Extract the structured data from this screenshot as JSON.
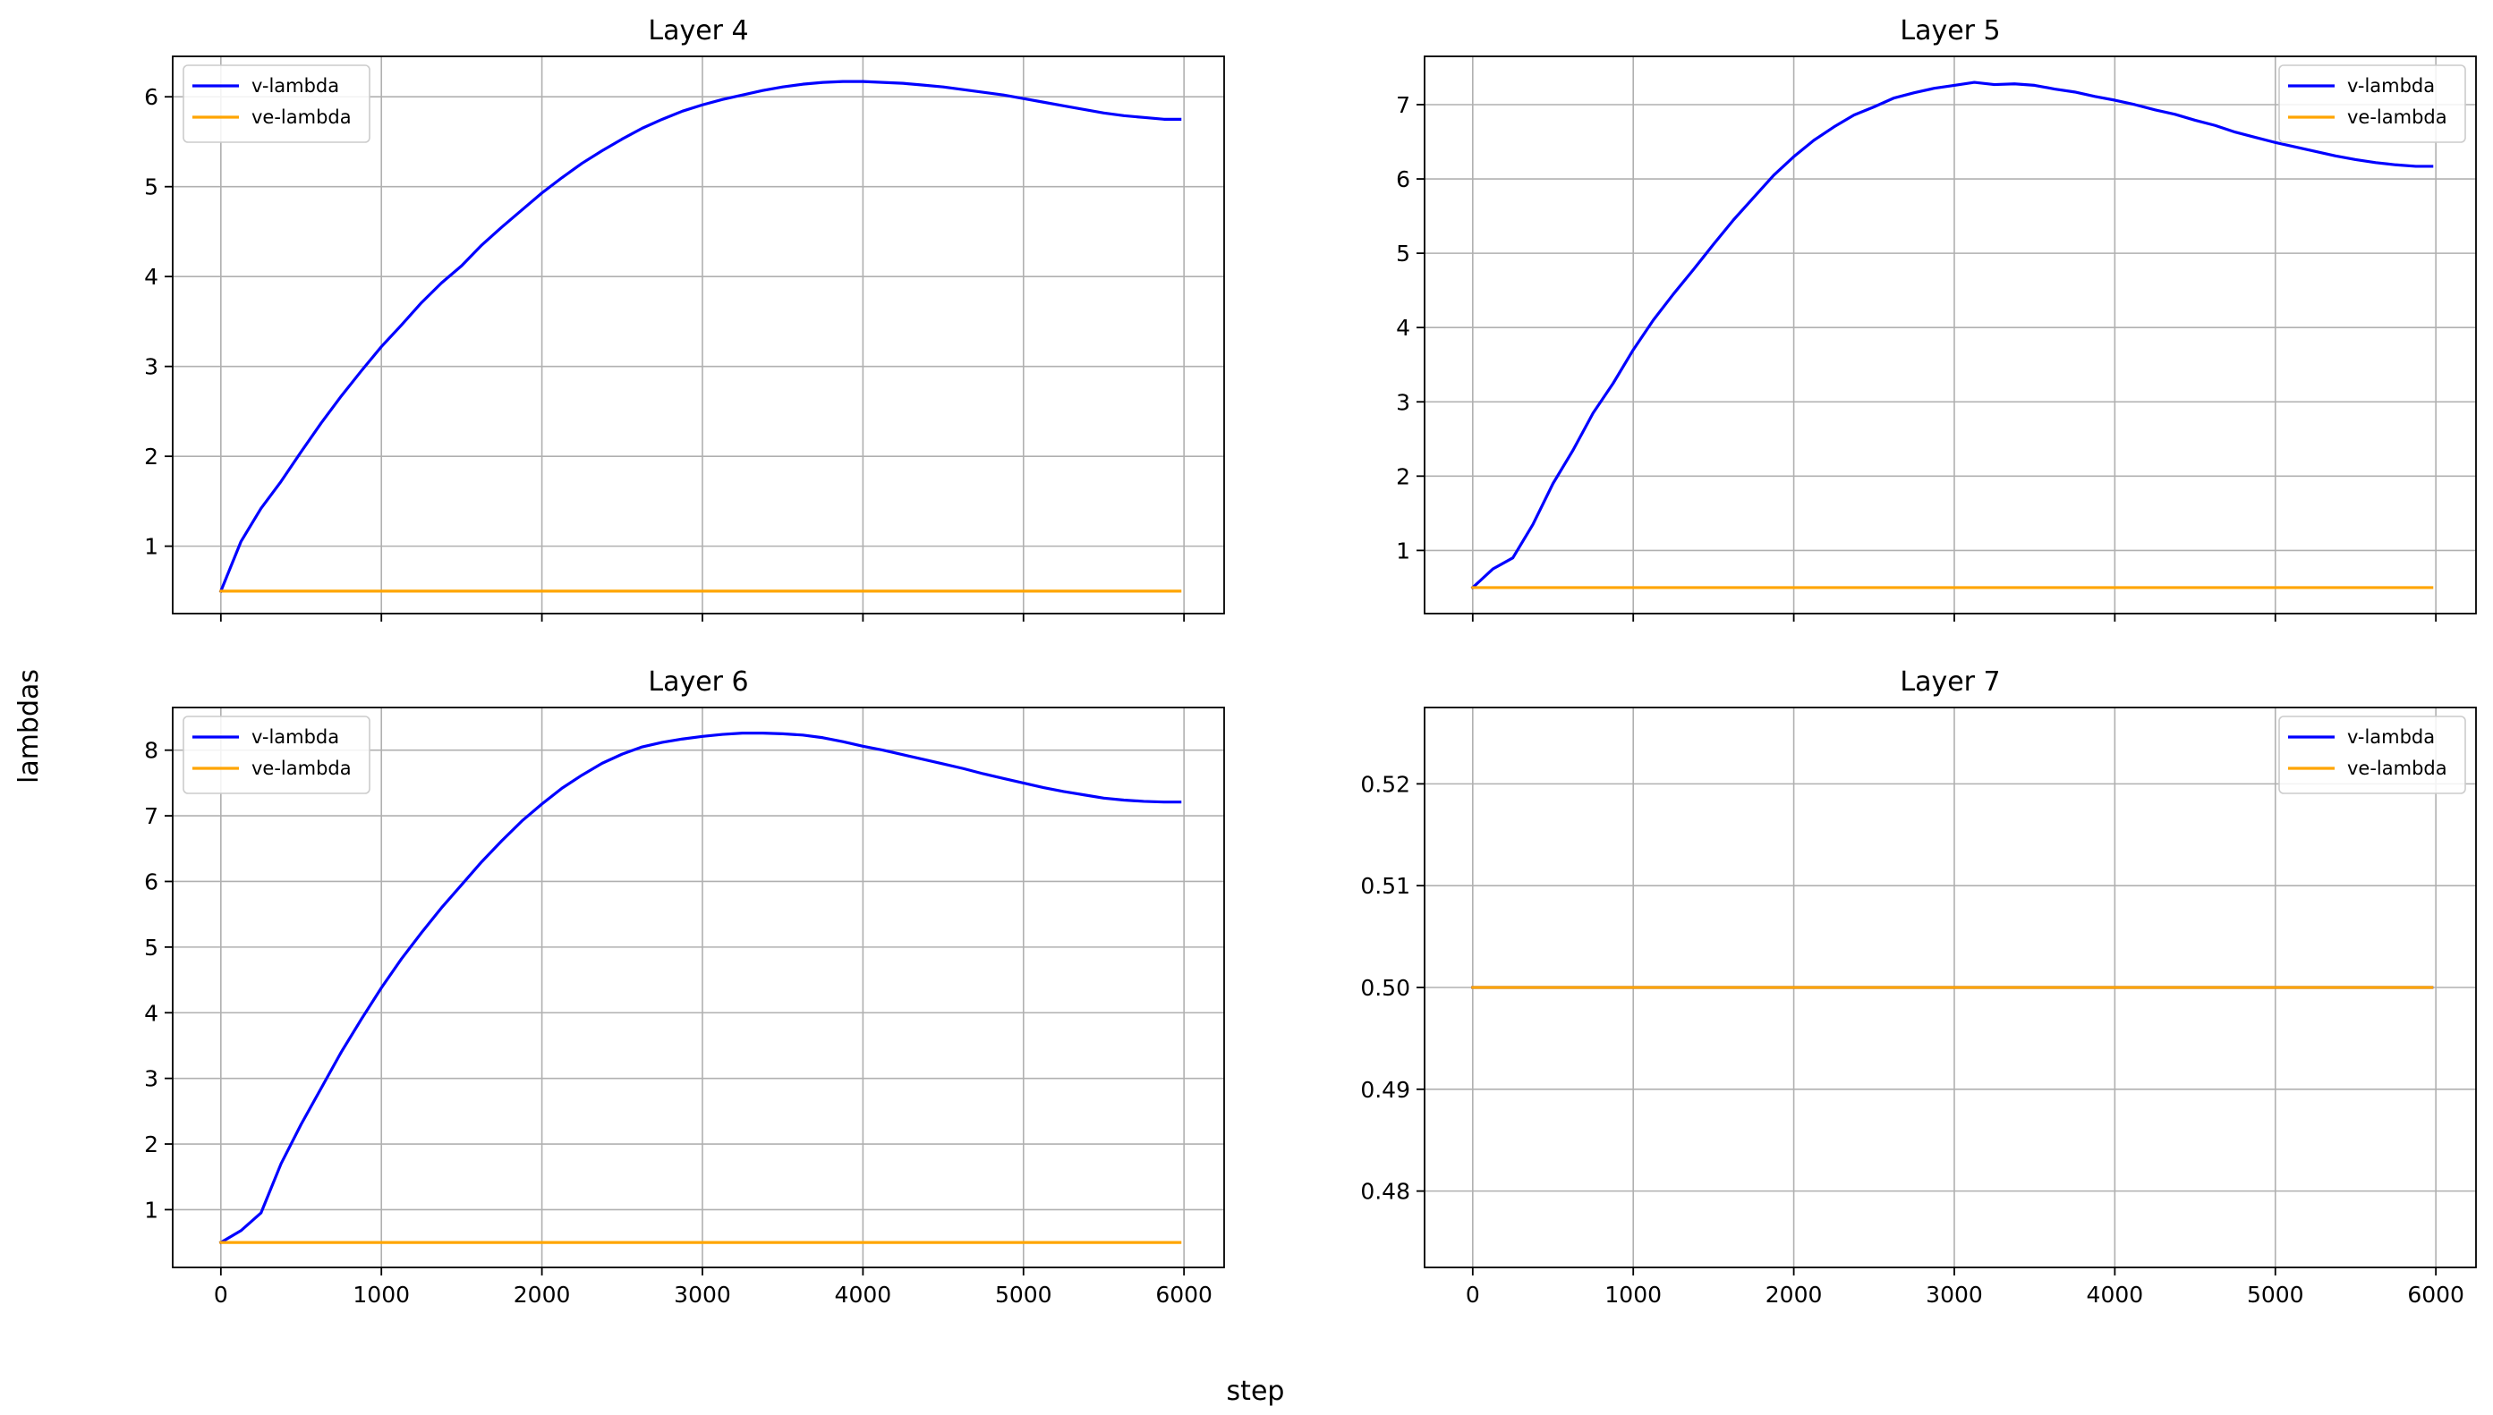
{
  "figure": {
    "xlabel": "step",
    "ylabel": "lambdas"
  },
  "colors": {
    "v_lambda": "#0000ff",
    "ve_lambda": "#ffa500",
    "grid": "#b0b0b0",
    "axes": "#000000"
  },
  "chart_data": [
    {
      "type": "line",
      "title": "Layer 4",
      "xlim": [
        -300,
        6250
      ],
      "ylim": [
        0.25,
        6.45
      ],
      "xticks": [
        0,
        1000,
        2000,
        3000,
        4000,
        5000,
        6000
      ],
      "xtick_labels_visible": false,
      "yticks": [
        1,
        2,
        3,
        4,
        5,
        6
      ],
      "ytick_labels": [
        "1",
        "2",
        "3",
        "4",
        "5",
        "6"
      ],
      "grid": true,
      "legend_position": "upper-left",
      "series": [
        {
          "name": "v-lambda",
          "color": "#0000ff",
          "x": [
            0,
            125,
            250,
            375,
            500,
            625,
            750,
            875,
            1000,
            1125,
            1250,
            1375,
            1500,
            1625,
            1750,
            1875,
            2000,
            2125,
            2250,
            2375,
            2500,
            2625,
            2750,
            2875,
            3000,
            3125,
            3250,
            3375,
            3500,
            3625,
            3750,
            3875,
            4000,
            4125,
            4250,
            4375,
            4500,
            4625,
            4750,
            4875,
            5000,
            5125,
            5250,
            5375,
            5500,
            5625,
            5750,
            5875,
            5975
          ],
          "y": [
            0.5,
            1.05,
            1.42,
            1.72,
            2.05,
            2.37,
            2.67,
            2.95,
            3.22,
            3.46,
            3.71,
            3.93,
            4.12,
            4.35,
            4.55,
            4.74,
            4.93,
            5.1,
            5.26,
            5.4,
            5.53,
            5.65,
            5.75,
            5.84,
            5.91,
            5.97,
            6.02,
            6.07,
            6.11,
            6.14,
            6.16,
            6.17,
            6.17,
            6.16,
            6.15,
            6.13,
            6.11,
            6.08,
            6.05,
            6.02,
            5.98,
            5.94,
            5.9,
            5.86,
            5.82,
            5.79,
            5.77,
            5.75,
            5.75
          ]
        },
        {
          "name": "ve-lambda",
          "color": "#ffa500",
          "x": [
            0,
            5975
          ],
          "y": [
            0.5,
            0.5
          ]
        }
      ]
    },
    {
      "type": "line",
      "title": "Layer 5",
      "xlim": [
        -300,
        6250
      ],
      "ylim": [
        0.15,
        7.65
      ],
      "xticks": [
        0,
        1000,
        2000,
        3000,
        4000,
        5000,
        6000
      ],
      "xtick_labels_visible": false,
      "yticks": [
        1,
        2,
        3,
        4,
        5,
        6,
        7
      ],
      "ytick_labels": [
        "1",
        "2",
        "3",
        "4",
        "5",
        "6",
        "7"
      ],
      "grid": true,
      "legend_position": "upper-right",
      "series": [
        {
          "name": "v-lambda",
          "color": "#0000ff",
          "x": [
            0,
            125,
            250,
            375,
            500,
            625,
            750,
            875,
            1000,
            1125,
            1250,
            1375,
            1500,
            1625,
            1750,
            1875,
            2000,
            2125,
            2250,
            2375,
            2500,
            2625,
            2750,
            2875,
            3000,
            3125,
            3250,
            3375,
            3500,
            3625,
            3750,
            3875,
            4000,
            4125,
            4250,
            4375,
            4500,
            4625,
            4750,
            4875,
            5000,
            5125,
            5250,
            5375,
            5500,
            5625,
            5750,
            5875,
            5975
          ],
          "y": [
            0.5,
            0.75,
            0.9,
            1.35,
            1.9,
            2.35,
            2.85,
            3.25,
            3.7,
            4.1,
            4.45,
            4.78,
            5.12,
            5.45,
            5.75,
            6.05,
            6.3,
            6.52,
            6.7,
            6.86,
            6.97,
            7.09,
            7.16,
            7.22,
            7.26,
            7.3,
            7.27,
            7.28,
            7.26,
            7.21,
            7.17,
            7.11,
            7.06,
            7.0,
            6.93,
            6.87,
            6.79,
            6.72,
            6.63,
            6.56,
            6.49,
            6.43,
            6.37,
            6.31,
            6.26,
            6.22,
            6.19,
            6.17,
            6.17
          ]
        },
        {
          "name": "ve-lambda",
          "color": "#ffa500",
          "x": [
            0,
            5975
          ],
          "y": [
            0.5,
            0.5
          ]
        }
      ]
    },
    {
      "type": "line",
      "title": "Layer 6",
      "xlim": [
        -300,
        6250
      ],
      "ylim": [
        0.12,
        8.65
      ],
      "xticks": [
        0,
        1000,
        2000,
        3000,
        4000,
        5000,
        6000
      ],
      "xtick_labels_visible": true,
      "xtick_labels": [
        "0",
        "1000",
        "2000",
        "3000",
        "4000",
        "5000",
        "6000"
      ],
      "yticks": [
        1,
        2,
        3,
        4,
        5,
        6,
        7,
        8
      ],
      "ytick_labels": [
        "1",
        "2",
        "3",
        "4",
        "5",
        "6",
        "7",
        "8"
      ],
      "grid": true,
      "legend_position": "upper-left",
      "series": [
        {
          "name": "v-lambda",
          "color": "#0000ff",
          "x": [
            0,
            125,
            250,
            375,
            500,
            625,
            750,
            875,
            1000,
            1125,
            1250,
            1375,
            1500,
            1625,
            1750,
            1875,
            2000,
            2125,
            2250,
            2375,
            2500,
            2625,
            2750,
            2875,
            3000,
            3125,
            3250,
            3375,
            3500,
            3625,
            3750,
            3875,
            4000,
            4125,
            4250,
            4375,
            4500,
            4625,
            4750,
            4875,
            5000,
            5125,
            5250,
            5375,
            5500,
            5625,
            5750,
            5875,
            5975
          ],
          "y": [
            0.5,
            0.68,
            0.95,
            1.7,
            2.3,
            2.85,
            3.4,
            3.9,
            4.38,
            4.82,
            5.22,
            5.6,
            5.95,
            6.3,
            6.62,
            6.92,
            7.18,
            7.42,
            7.62,
            7.8,
            7.94,
            8.05,
            8.12,
            8.17,
            8.21,
            8.24,
            8.26,
            8.26,
            8.25,
            8.23,
            8.19,
            8.13,
            8.06,
            8.0,
            7.93,
            7.86,
            7.79,
            7.72,
            7.64,
            7.57,
            7.5,
            7.43,
            7.37,
            7.32,
            7.27,
            7.24,
            7.22,
            7.21,
            7.21
          ]
        },
        {
          "name": "ve-lambda",
          "color": "#ffa500",
          "x": [
            0,
            5975
          ],
          "y": [
            0.5,
            0.5
          ]
        }
      ]
    },
    {
      "type": "line",
      "title": "Layer 7",
      "xlim": [
        -300,
        6250
      ],
      "ylim": [
        0.4725,
        0.5275
      ],
      "xticks": [
        0,
        1000,
        2000,
        3000,
        4000,
        5000,
        6000
      ],
      "xtick_labels_visible": true,
      "xtick_labels": [
        "0",
        "1000",
        "2000",
        "3000",
        "4000",
        "5000",
        "6000"
      ],
      "yticks": [
        0.48,
        0.49,
        0.5,
        0.51,
        0.52
      ],
      "ytick_labels": [
        "0.48",
        "0.49",
        "0.50",
        "0.51",
        "0.52"
      ],
      "grid": true,
      "legend_position": "upper-right",
      "series": [
        {
          "name": "v-lambda",
          "color": "#0000ff",
          "x": [
            0,
            5975
          ],
          "y": [
            0.5,
            0.5
          ]
        },
        {
          "name": "ve-lambda",
          "color": "#ffa500",
          "x": [
            0,
            5975
          ],
          "y": [
            0.5,
            0.5
          ]
        }
      ]
    }
  ]
}
